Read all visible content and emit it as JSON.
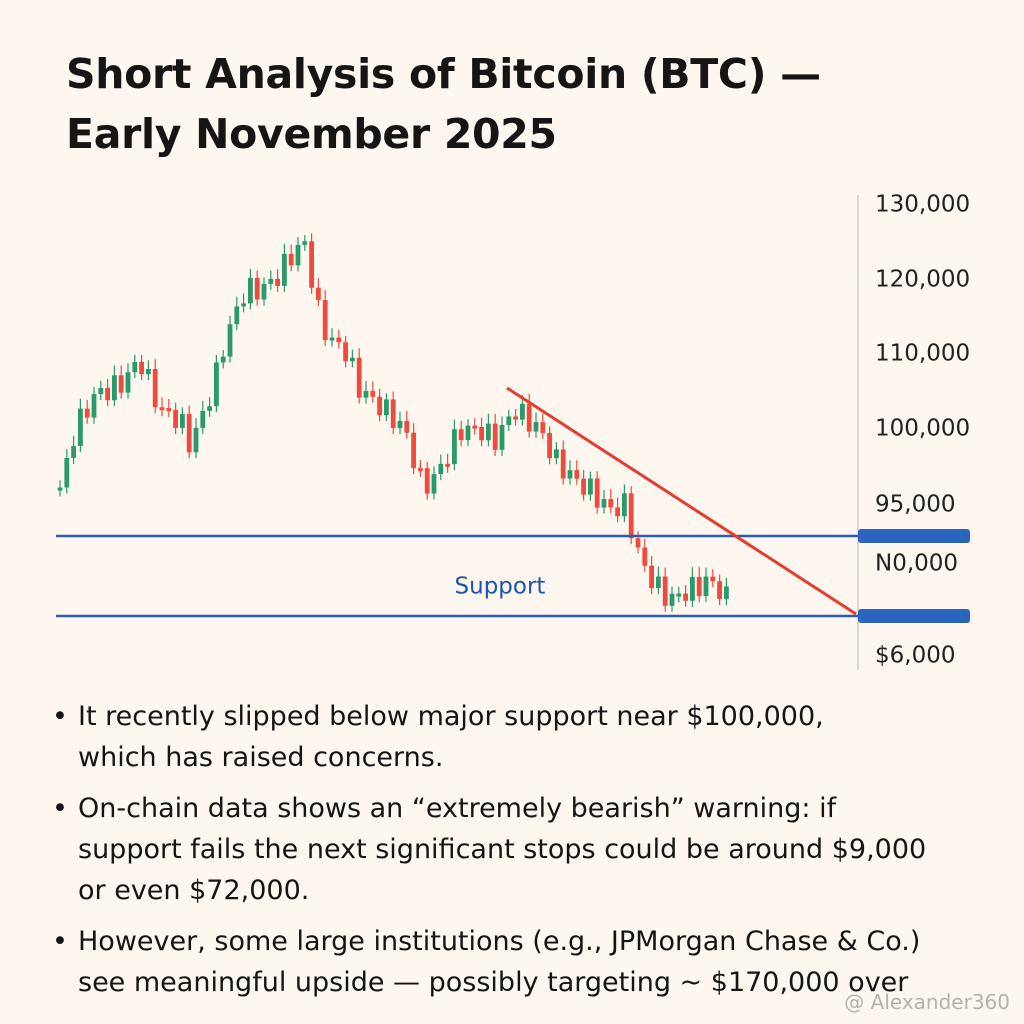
{
  "title": [
    "Short Analysis of Bitcoin (BTC) —",
    "Early November 2025"
  ],
  "axis_labels": [
    "130,000",
    "120,000",
    "110,000",
    "100,000",
    "95,000",
    "N0,000",
    "$6,000"
  ],
  "support_label": "Support",
  "bullets": [
    [
      "It recently slipped below major support near  $100,000,",
      "which has raised concerns."
    ],
    [
      "On-chain data shows an “extremely bearish” warning: if",
      "support fails the next significant stops could be around $9,000",
      "or even $72,000."
    ],
    [
      "However, some large institutions (e.g., JPMorgan Chase & Co.)",
      "see meaningful upside — possibly targeting ~ $170,000 over"
    ]
  ],
  "watermark": "@ Alexander360"
}
